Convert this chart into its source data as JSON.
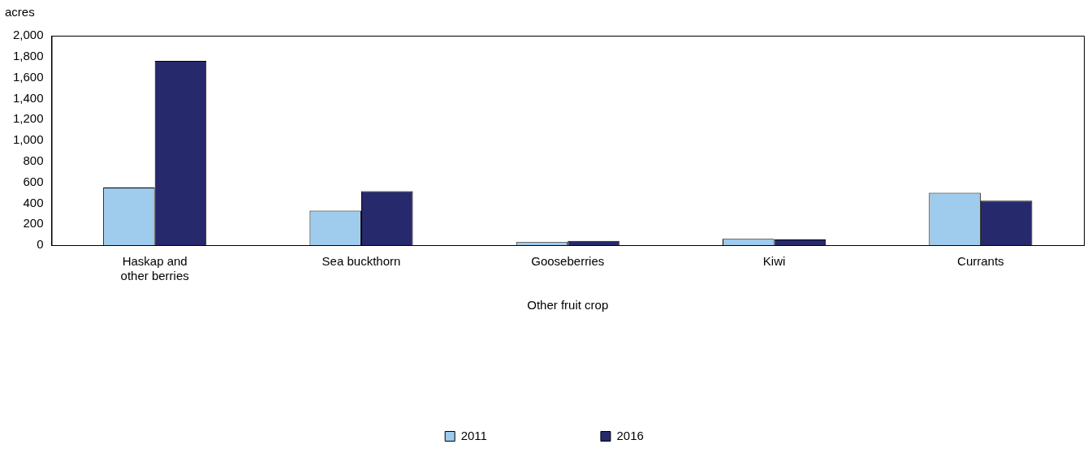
{
  "chart_data": {
    "type": "bar",
    "xlabel": "Other fruit crop",
    "ylabel": "acres",
    "categories": [
      "Haskap and other berries",
      "Sea buckthorn",
      "Gooseberries",
      "Kiwi",
      "Currants"
    ],
    "series": [
      {
        "name": "2011",
        "color": "#9fcbec",
        "values": [
          550,
          330,
          30,
          60,
          500
        ]
      },
      {
        "name": "2016",
        "color": "#27296d",
        "values": [
          1760,
          515,
          40,
          55,
          425
        ]
      }
    ],
    "ylim": [
      0,
      2000
    ],
    "yticks": [
      0,
      200,
      400,
      600,
      800,
      {
        "value": 1000,
        "label": "1,000"
      },
      {
        "value": 1200,
        "label": "1,200"
      },
      {
        "value": 1400,
        "label": "1,400"
      },
      {
        "value": 1600,
        "label": "1,600"
      },
      {
        "value": 1800,
        "label": "1,800"
      },
      {
        "value": 2000,
        "label": "2,000"
      }
    ],
    "grid": false,
    "legend": "bottom"
  }
}
